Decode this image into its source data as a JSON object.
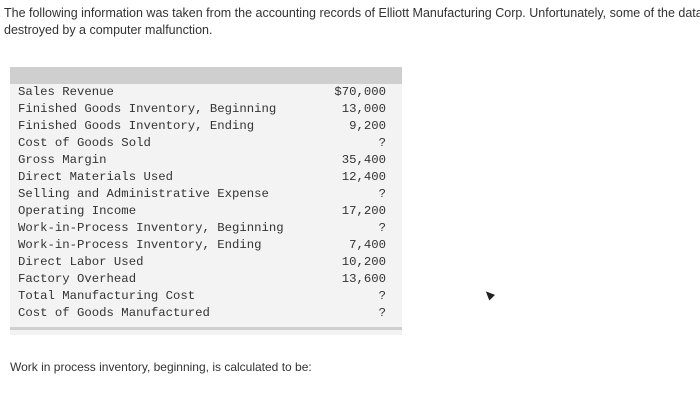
{
  "intro_text": "The following information was taken from the accounting records of Elliott Manufacturing Corp. Unfortunately, some of the data were destroyed by a computer malfunction.",
  "table": {
    "rows": [
      {
        "label": "Sales Revenue",
        "value": "$70,000"
      },
      {
        "label": "Finished Goods Inventory, Beginning",
        "value": "13,000"
      },
      {
        "label": "Finished Goods Inventory, Ending",
        "value": "9,200"
      },
      {
        "label": "Cost of Goods Sold",
        "value": "?"
      },
      {
        "label": "Gross Margin",
        "value": "35,400"
      },
      {
        "label": "Direct Materials Used",
        "value": "12,400"
      },
      {
        "label": "Selling and Administrative Expense",
        "value": "?"
      },
      {
        "label": "Operating Income",
        "value": "17,200"
      },
      {
        "label": "Work-in-Process Inventory, Beginning",
        "value": "?"
      },
      {
        "label": "Work-in-Process Inventory, Ending",
        "value": "7,400"
      },
      {
        "label": "Direct Labor Used",
        "value": "10,200"
      },
      {
        "label": "Factory Overhead",
        "value": "13,600"
      },
      {
        "label": "Total Manufacturing Cost",
        "value": "?"
      },
      {
        "label": "Cost of Goods Manufactured",
        "value": "?"
      }
    ]
  },
  "question_text": "Work in process inventory, beginning, is calculated to be:",
  "icons": {
    "cursor": "mouse-cursor-icon"
  }
}
